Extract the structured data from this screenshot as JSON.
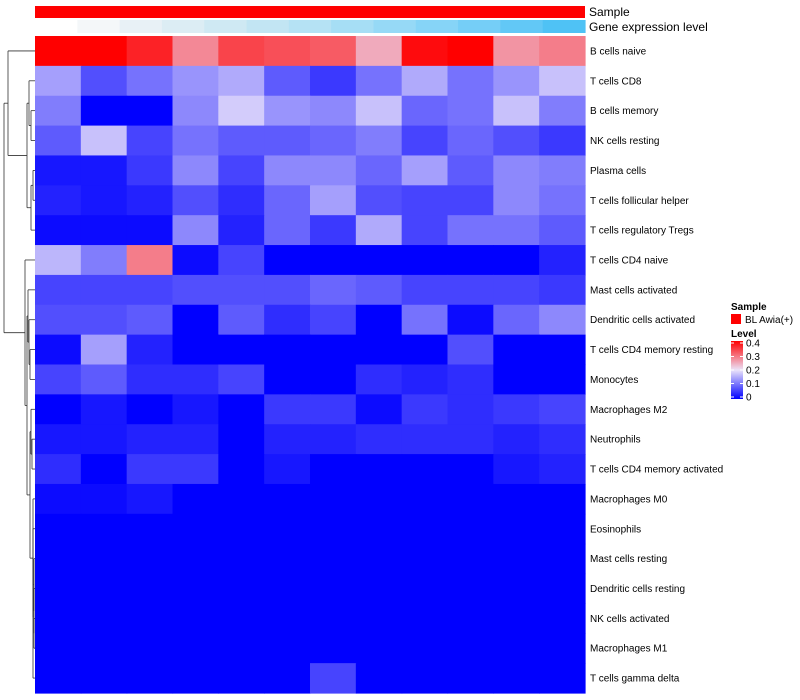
{
  "chart_data": {
    "type": "heatmap",
    "annotation_tracks": [
      {
        "name": "Sample",
        "color": "#ff0000"
      },
      {
        "name": "Gene expression level",
        "colors": [
          "#ffffff",
          "#f4f7f9",
          "#e8f1f6",
          "#dcedf4",
          "#cfe9f3",
          "#c2e5f3",
          "#b5e2f4",
          "#a6def5",
          "#96d9f6",
          "#86d4f7",
          "#75cef7",
          "#62c8f6",
          "#4fc2f5"
        ]
      }
    ],
    "rows": [
      "B cells naive",
      "T cells CD8",
      "B cells memory",
      "NK cells resting",
      "Plasma cells",
      "T cells follicular helper",
      "T cells regulatory  Tregs",
      "T cells CD4 naive",
      "Mast cells activated",
      "Dendritic cells activated",
      "T cells CD4 memory resting",
      "Monocytes",
      "Macrophages M2",
      "Neutrophils",
      "T cells CD4 memory activated",
      "Macrophages M0",
      "Eosinophils",
      "Mast cells resting",
      "Dendritic cells resting",
      "NK cells activated",
      "Macrophages M1",
      "T cells gamma delta"
    ],
    "n_columns": 12,
    "values": [
      [
        0.4,
        0.4,
        0.37,
        0.28,
        0.34,
        0.33,
        0.32,
        0.25,
        0.39,
        0.4,
        0.27,
        0.29
      ],
      [
        0.14,
        0.07,
        0.1,
        0.13,
        0.15,
        0.08,
        0.05,
        0.1,
        0.15,
        0.1,
        0.13,
        0.17
      ],
      [
        0.11,
        0.0,
        0.0,
        0.12,
        0.18,
        0.13,
        0.12,
        0.17,
        0.09,
        0.1,
        0.17,
        0.11
      ],
      [
        0.08,
        0.17,
        0.06,
        0.1,
        0.08,
        0.08,
        0.09,
        0.11,
        0.06,
        0.09,
        0.07,
        0.05
      ],
      [
        0.02,
        0.02,
        0.05,
        0.12,
        0.06,
        0.12,
        0.12,
        0.09,
        0.14,
        0.08,
        0.12,
        0.11
      ],
      [
        0.03,
        0.02,
        0.03,
        0.07,
        0.04,
        0.09,
        0.14,
        0.07,
        0.06,
        0.06,
        0.12,
        0.1
      ],
      [
        0.01,
        0.01,
        0.01,
        0.12,
        0.03,
        0.09,
        0.05,
        0.15,
        0.06,
        0.1,
        0.1,
        0.08
      ],
      [
        0.16,
        0.11,
        0.29,
        0.01,
        0.06,
        0.0,
        0.0,
        0.0,
        0.0,
        0.0,
        0.0,
        0.03
      ],
      [
        0.06,
        0.06,
        0.06,
        0.07,
        0.07,
        0.07,
        0.09,
        0.08,
        0.06,
        0.06,
        0.06,
        0.05
      ],
      [
        0.07,
        0.07,
        0.08,
        0.0,
        0.08,
        0.04,
        0.06,
        0.0,
        0.1,
        0.01,
        0.09,
        0.12
      ],
      [
        0.01,
        0.14,
        0.03,
        0.0,
        0.0,
        0.0,
        0.0,
        0.0,
        0.0,
        0.07,
        0.0,
        0.0
      ],
      [
        0.06,
        0.08,
        0.04,
        0.04,
        0.06,
        0.0,
        0.0,
        0.04,
        0.03,
        0.04,
        0.0,
        0.0
      ],
      [
        0.0,
        0.02,
        0.0,
        0.02,
        0.0,
        0.05,
        0.05,
        0.01,
        0.05,
        0.04,
        0.05,
        0.06
      ],
      [
        0.02,
        0.02,
        0.03,
        0.03,
        0.0,
        0.03,
        0.03,
        0.04,
        0.04,
        0.04,
        0.03,
        0.04
      ],
      [
        0.04,
        0.0,
        0.05,
        0.05,
        0.0,
        0.02,
        0.0,
        0.0,
        0.0,
        0.0,
        0.02,
        0.03
      ],
      [
        0.01,
        0.01,
        0.02,
        0.0,
        0.0,
        0.0,
        0.0,
        0.0,
        0.0,
        0.0,
        0.0,
        0.0
      ],
      [
        0.0,
        0.0,
        0.0,
        0.0,
        0.0,
        0.0,
        0.0,
        0.0,
        0.0,
        0.0,
        0.0,
        0.0
      ],
      [
        0.0,
        0.0,
        0.0,
        0.0,
        0.0,
        0.0,
        0.0,
        0.0,
        0.0,
        0.0,
        0.0,
        0.0
      ],
      [
        0.0,
        0.0,
        0.0,
        0.0,
        0.0,
        0.0,
        0.0,
        0.0,
        0.0,
        0.0,
        0.0,
        0.0
      ],
      [
        0.0,
        0.0,
        0.0,
        0.0,
        0.0,
        0.0,
        0.0,
        0.0,
        0.0,
        0.0,
        0.0,
        0.0
      ],
      [
        0.0,
        0.0,
        0.0,
        0.0,
        0.0,
        0.0,
        0.0,
        0.0,
        0.0,
        0.0,
        0.0,
        0.0
      ],
      [
        0.0,
        0.0,
        0.0,
        0.0,
        0.0,
        0.0,
        0.06,
        0.0,
        0.0,
        0.0,
        0.0,
        0.0
      ]
    ],
    "color_scale": {
      "domain": [
        0,
        0.2,
        0.4
      ],
      "colors": [
        "#0000ff",
        "#ebe3fa",
        "#ff0000"
      ]
    },
    "legend": {
      "sample_title": "Sample",
      "sample_entry": "BL Awia(+)",
      "sample_color": "#ff0000",
      "level_title": "Level",
      "level_ticks": [
        "0.4",
        "0.3",
        "0.2",
        "0.1",
        "0"
      ],
      "level_tick_values": [
        0.4,
        0.3,
        0.2,
        0.1,
        0
      ]
    },
    "dendrogram": "row",
    "legend_position": "right"
  }
}
